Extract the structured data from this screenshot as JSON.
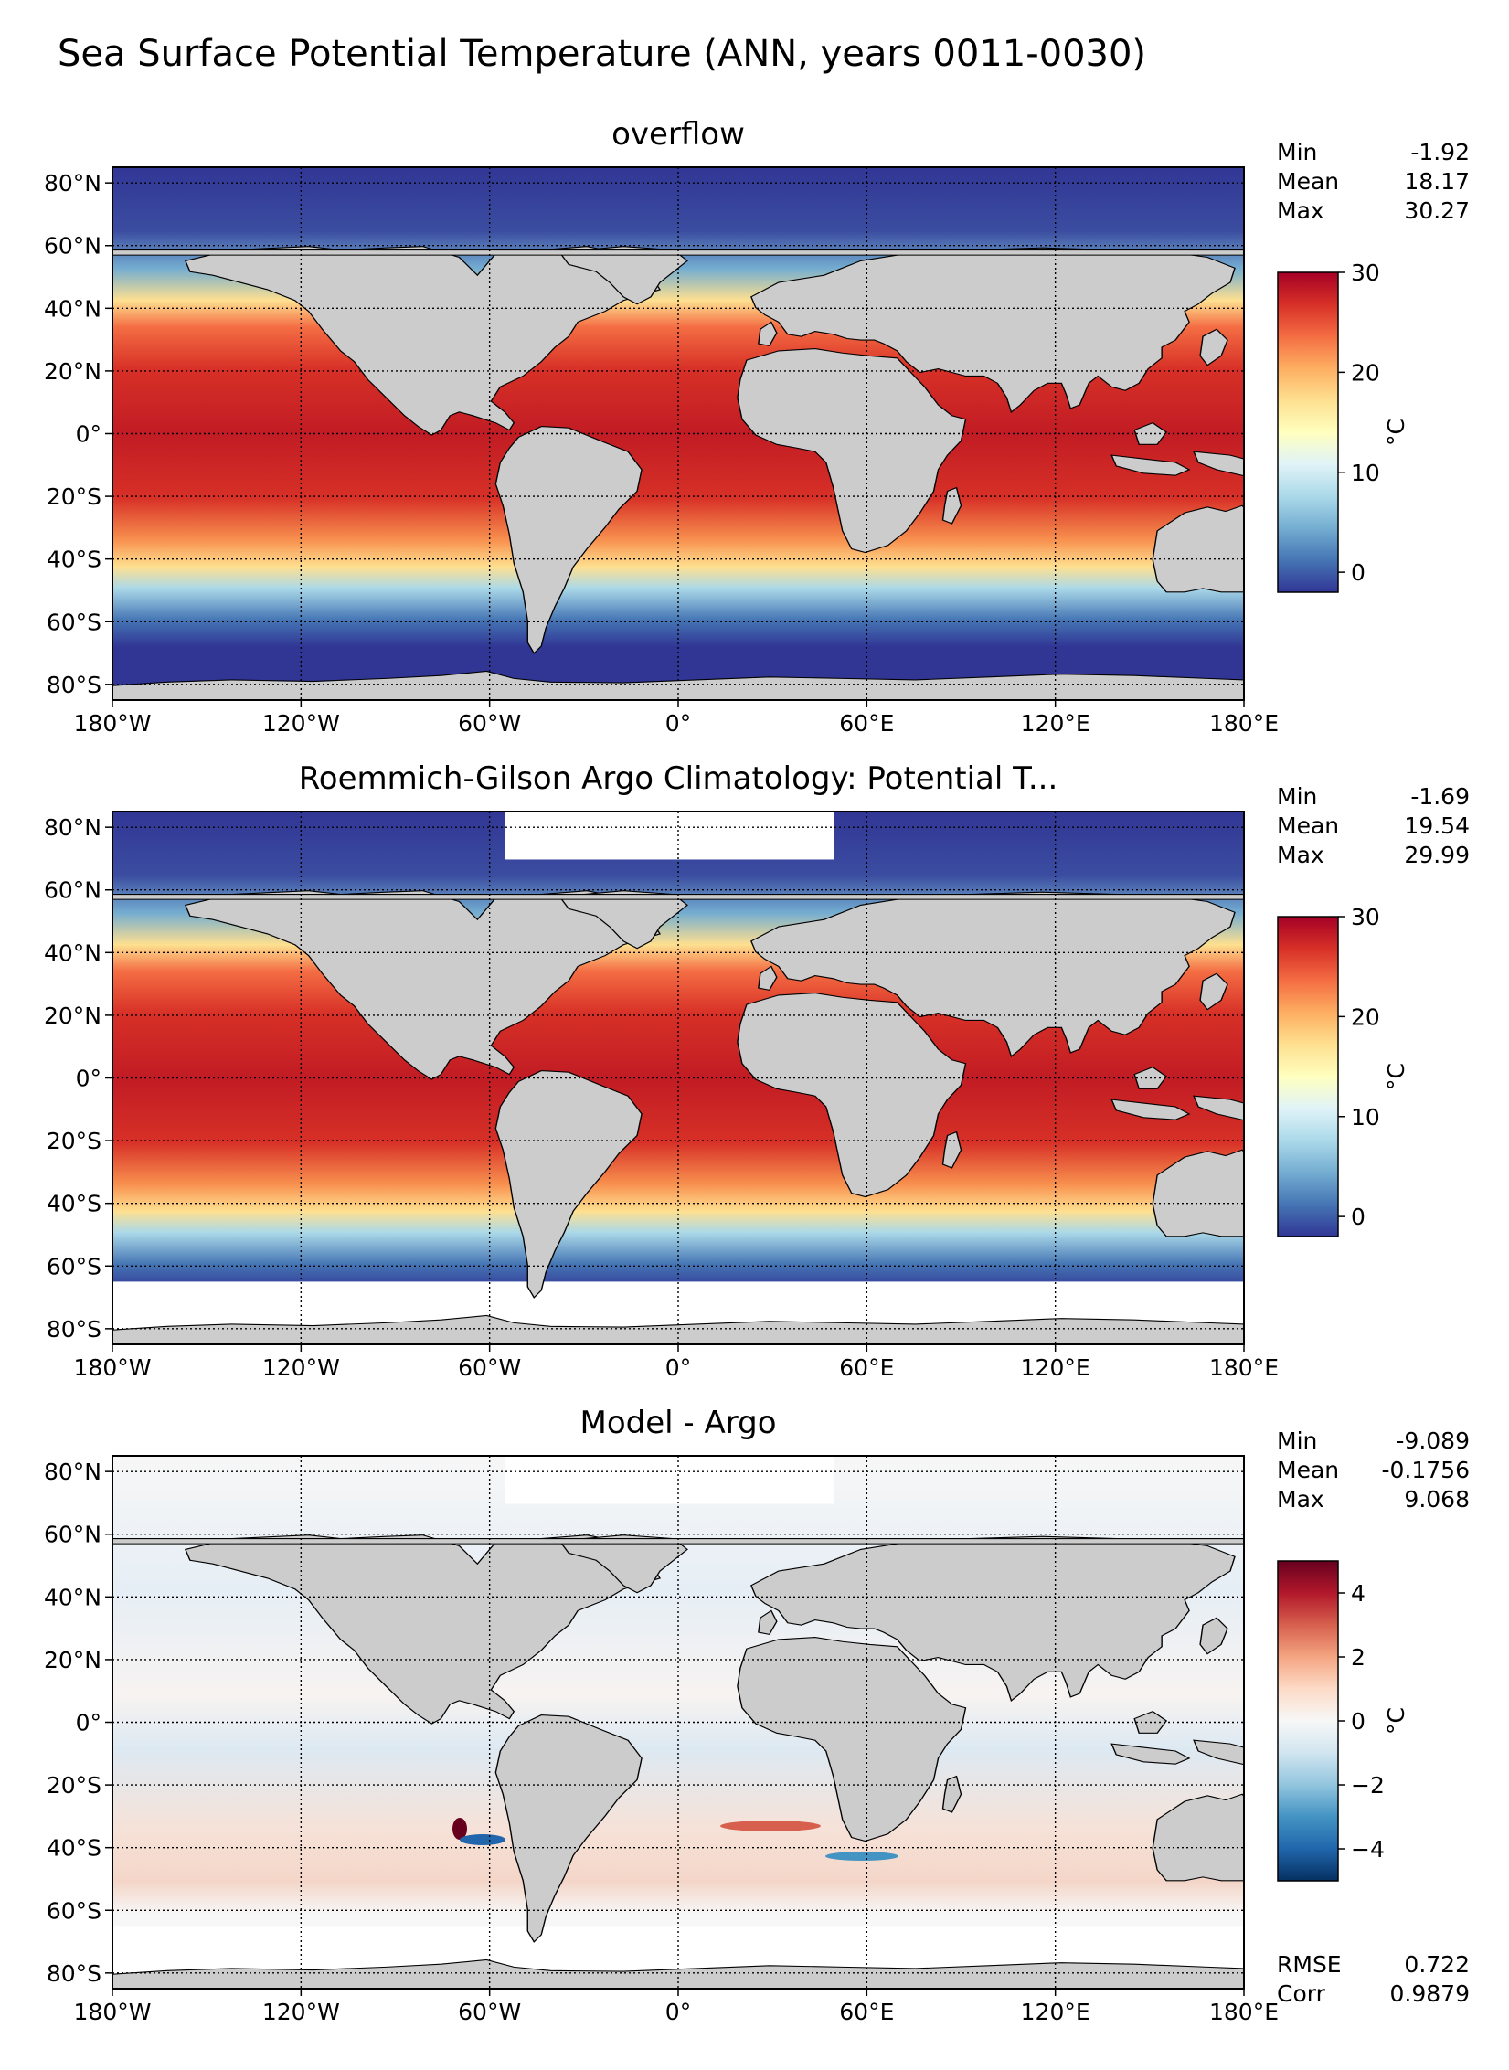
{
  "figure": {
    "suptitle": "Sea Surface Potential Temperature (ANN, years 0011-0030)"
  },
  "colors": {
    "land": "#cccccc",
    "no_data": "#ffffff",
    "sst_cmap": [
      "#313695",
      "#4575b4",
      "#74add1",
      "#abd9e9",
      "#e0f3f8",
      "#ffffbf",
      "#fee090",
      "#fdae61",
      "#f46d43",
      "#d73027",
      "#a50026"
    ],
    "diff_cmap": [
      "#053061",
      "#2166ac",
      "#4393c3",
      "#92c5de",
      "#d1e5f0",
      "#f7f7f7",
      "#fddbc7",
      "#f4a582",
      "#d6604d",
      "#b2182b",
      "#67001f"
    ]
  },
  "chart_data": [
    {
      "type": "heatmap",
      "title": "overflow",
      "x_ticks": [
        "180°W",
        "120°W",
        "60°W",
        "0°",
        "60°E",
        "120°E",
        "180°E"
      ],
      "y_ticks": [
        "80°N",
        "60°N",
        "40°N",
        "20°N",
        "0°",
        "20°S",
        "40°S",
        "60°S",
        "80°S"
      ],
      "xlim": [
        -180,
        180
      ],
      "ylim": [
        -85,
        85
      ],
      "colorbar": {
        "label": "°C",
        "ticks": [
          "0",
          "10",
          "20",
          "30"
        ],
        "range": [
          -2,
          30
        ]
      },
      "stats": [
        {
          "label": "Min",
          "value": "-1.92"
        },
        {
          "label": "Mean",
          "value": "18.17"
        },
        {
          "label": "Max",
          "value": "30.27"
        }
      ]
    },
    {
      "type": "heatmap",
      "title": "Roemmich-Gilson Argo Climatology: Potential T...",
      "x_ticks": [
        "180°W",
        "120°W",
        "60°W",
        "0°",
        "60°E",
        "120°E",
        "180°E"
      ],
      "y_ticks": [
        "80°N",
        "60°N",
        "40°N",
        "20°N",
        "0°",
        "20°S",
        "40°S",
        "60°S",
        "80°S"
      ],
      "xlim": [
        -180,
        180
      ],
      "ylim": [
        -85,
        85
      ],
      "colorbar": {
        "label": "°C",
        "ticks": [
          "0",
          "10",
          "20",
          "30"
        ],
        "range": [
          -2,
          30
        ]
      },
      "stats": [
        {
          "label": "Min",
          "value": "-1.69"
        },
        {
          "label": "Mean",
          "value": "19.54"
        },
        {
          "label": "Max",
          "value": "29.99"
        }
      ]
    },
    {
      "type": "heatmap",
      "title": "Model - Argo",
      "x_ticks": [
        "180°W",
        "120°W",
        "60°W",
        "0°",
        "60°E",
        "120°E",
        "180°E"
      ],
      "y_ticks": [
        "80°N",
        "60°N",
        "40°N",
        "20°N",
        "0°",
        "20°S",
        "40°S",
        "60°S",
        "80°S"
      ],
      "xlim": [
        -180,
        180
      ],
      "ylim": [
        -85,
        85
      ],
      "colorbar": {
        "label": "°C",
        "ticks": [
          "4",
          "2",
          "0",
          "−2",
          "−4"
        ],
        "range": [
          -5,
          5
        ]
      },
      "stats": [
        {
          "label": "Min",
          "value": "-9.089"
        },
        {
          "label": "Mean",
          "value": "-0.1756"
        },
        {
          "label": "Max",
          "value": "9.068"
        }
      ],
      "metrics": [
        {
          "label": "RMSE",
          "value": "0.722"
        },
        {
          "label": "Corr",
          "value": "0.9879"
        }
      ]
    }
  ]
}
